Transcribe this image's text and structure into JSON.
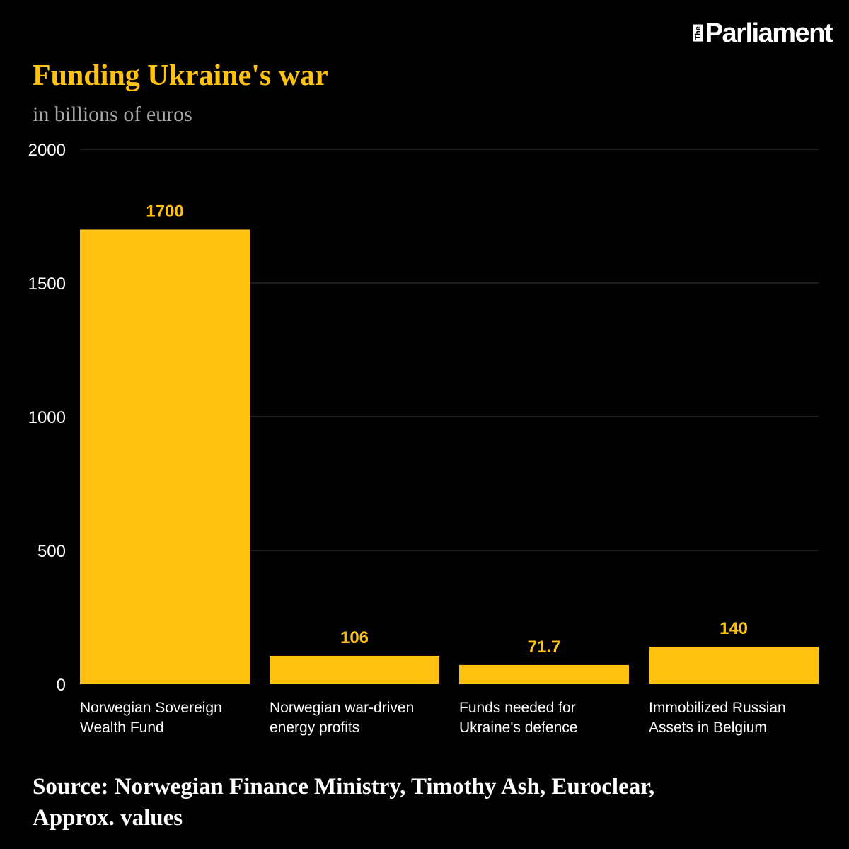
{
  "brand": {
    "prefix": "The",
    "name": "Parliament"
  },
  "colors": {
    "background": "#000000",
    "bar": "#FFC211",
    "accent": "#FFC211",
    "grid": "#3a3a3a",
    "axis_text": "#ffffff",
    "subtitle": "#a8a8a8"
  },
  "chart_data": {
    "type": "bar",
    "title": "Funding Ukraine's war",
    "subtitle": "in billions of euros",
    "categories": [
      [
        "Norwegian Sovereign",
        "Wealth Fund"
      ],
      [
        "Norwegian war-driven",
        "energy profits"
      ],
      [
        "Funds needed for",
        "Ukraine's defence"
      ],
      [
        "Immobilized Russian",
        "Assets in Belgium"
      ]
    ],
    "values": [
      1700,
      106,
      71.7,
      140
    ],
    "value_labels": [
      "1700",
      "106",
      "71.7",
      "140"
    ],
    "yticks": [
      0,
      500,
      1000,
      1500,
      2000
    ],
    "ylim": [
      0,
      2000
    ],
    "grid": true,
    "xlabel": "",
    "ylabel": ""
  },
  "source": {
    "line1": "Source: Norwegian Finance Ministry, Timothy Ash, Euroclear,",
    "line2": "Approx. values"
  }
}
